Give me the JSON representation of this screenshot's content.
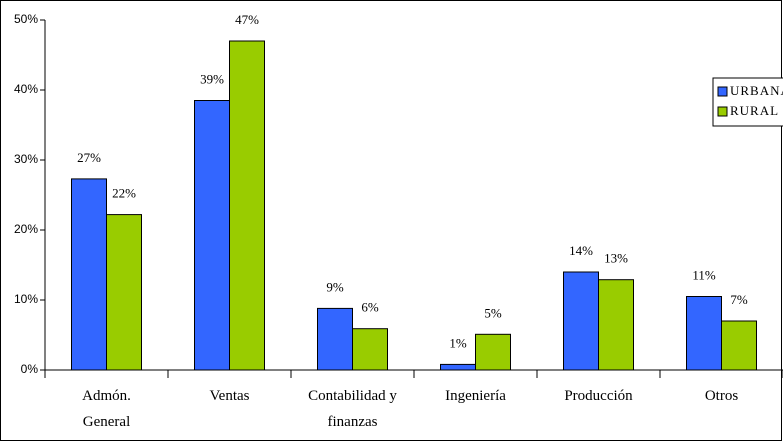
{
  "chart_data": {
    "type": "bar",
    "categories": [
      "Admón. General",
      "Ventas",
      "Contabilidad y finanzas",
      "Ingeniería",
      "Producción",
      "Otros"
    ],
    "series": [
      {
        "name": "URBANA",
        "color": "#3366ff",
        "values": [
          27.3,
          38.5,
          8.8,
          0.8,
          14,
          10.5
        ],
        "value_labels": [
          "27%",
          "39%",
          "9%",
          "1%",
          "14%",
          "11%"
        ]
      },
      {
        "name": "RURAL",
        "color": "#99cc00",
        "values": [
          22.2,
          47,
          5.9,
          5.1,
          12.9,
          7
        ],
        "value_labels": [
          "22%",
          "47%",
          "6%",
          "5%",
          "13%",
          "7%"
        ]
      }
    ],
    "ylim": [
      0,
      50
    ],
    "yticks": [
      {
        "value": 0,
        "label": "0%"
      },
      {
        "value": 10,
        "label": "10%"
      },
      {
        "value": 20,
        "label": "20%"
      },
      {
        "value": 30,
        "label": "30%"
      },
      {
        "value": 40,
        "label": "40%"
      },
      {
        "value": 50,
        "label": "50%"
      }
    ],
    "legend": "right"
  }
}
